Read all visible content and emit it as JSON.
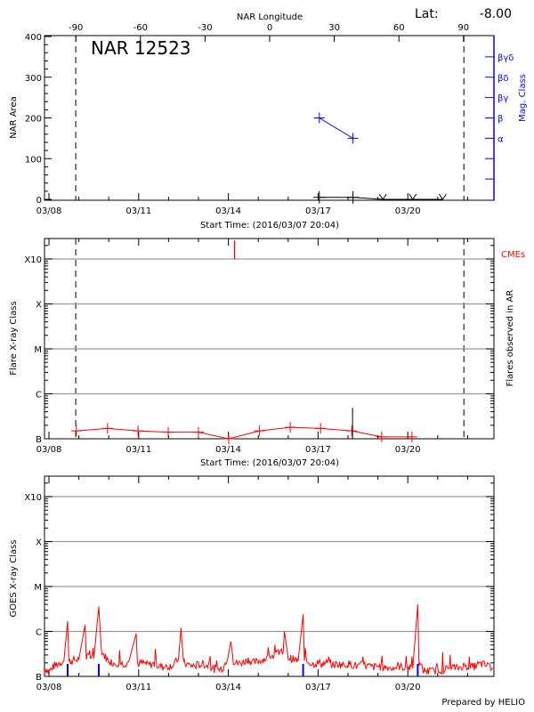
{
  "header": {
    "lat_label": "Lat:",
    "lat_value": "-8.00",
    "footer": "Prepared by HELIO"
  },
  "colors": {
    "flare": "#ff0000",
    "mag": "#0000ff",
    "grid": "#999999",
    "goes_event": "#0000ff"
  },
  "time_axis": {
    "range": [
      "03/07 20:04",
      "03/22 20:04"
    ],
    "tick_labels": [
      "03/08",
      "03/11",
      "03/14",
      "03/17",
      "03/20"
    ],
    "xlabel": "Start Time: (2016/03/07 20:04)"
  },
  "chart_data": [
    {
      "type": "line",
      "title": "NAR 12523",
      "ylabel": "NAR Area",
      "ylim": [
        0,
        400
      ],
      "yticks": [
        "0",
        "100",
        "200",
        "300",
        "400"
      ],
      "top_axis": {
        "label": "NAR Longitude",
        "ticks": [
          "-90",
          "-60",
          "-30",
          "0",
          "30",
          "60",
          "90"
        ]
      },
      "limb_lines": [
        "03/08 21:30",
        "03/21 21:00"
      ],
      "area_series": [
        {
          "t": "03/17 01:00",
          "v": 5
        },
        {
          "t": "03/18 04:00",
          "v": 5
        },
        {
          "t": "03/19 04:00",
          "v": 0
        },
        {
          "t": "03/20 04:00",
          "v": 0
        },
        {
          "t": "03/21 04:00",
          "v": 0
        }
      ],
      "right_axis": {
        "label": "Mag. Class",
        "classes": [
          "α",
          "β",
          "βγ",
          "βδ",
          "βγδ"
        ]
      },
      "mag_series": [
        {
          "t": "03/17 01:00",
          "class": "β"
        },
        {
          "t": "03/18 04:00",
          "class": "α"
        }
      ]
    },
    {
      "type": "line",
      "ylabel": "Flare X-ray Class",
      "right_label": "Flares observed in AR",
      "cme_label": "CMEs",
      "yticks": [
        "B",
        "C",
        "M",
        "X",
        "X10"
      ],
      "scale": "log",
      "grid": true,
      "limb_lines": [
        "03/08 21:30",
        "03/21 21:00"
      ],
      "flare_series": [
        {
          "t": "03/08 22:00",
          "v": 1.5e-07
        },
        {
          "t": "03/09 23:00",
          "v": 1.7e-07
        },
        {
          "t": "03/10 23:30",
          "v": 1.5e-07
        },
        {
          "t": "03/11 23:45",
          "v": 1.4e-07
        },
        {
          "t": "03/13 00:00",
          "v": 1.4e-07
        },
        {
          "t": "03/14 00:15",
          "v": 1e-07
        },
        {
          "t": "03/15 01:00",
          "v": 1.5e-07
        },
        {
          "t": "03/16 01:40",
          "v": 1.8e-07
        },
        {
          "t": "03/17 02:00",
          "v": 1.7e-07
        },
        {
          "t": "03/18 03:00",
          "v": 1.5e-07
        },
        {
          "t": "03/19 03:00",
          "v": 1.1e-07
        },
        {
          "t": "03/20 03:20",
          "v": 1.1e-07
        }
      ],
      "observed_flares": [
        {
          "t": "03/18 03:40",
          "v": 4.9e-07
        }
      ],
      "cmes": [
        {
          "t": "03/14 05:00"
        }
      ]
    },
    {
      "type": "line",
      "ylabel": "GOES X-ray Class",
      "yticks": [
        "B",
        "C",
        "M",
        "X",
        "X10"
      ],
      "scale": "log",
      "grid": true,
      "flux": [
        [
          "03/07 20:00",
          1.5e-07
        ],
        [
          "03/08 00:00",
          1.3e-07
        ],
        [
          "03/08 04:00",
          1.7e-07
        ],
        [
          "03/08 08:00",
          2e-07
        ],
        [
          "03/08 12:00",
          2.2e-07
        ],
        [
          "03/08 15:00",
          1.7e-06
        ],
        [
          "03/08 16:00",
          2.1e-07
        ],
        [
          "03/08 20:00",
          2.3e-07
        ],
        [
          "03/09 00:00",
          2.4e-07
        ],
        [
          "03/09 05:00",
          1.4e-06
        ],
        [
          "03/09 06:00",
          2.6e-07
        ],
        [
          "03/09 08:00",
          2.8e-07
        ],
        [
          "03/09 12:00",
          2.5e-07
        ],
        [
          "03/09 16:00",
          3.6e-06
        ],
        [
          "03/09 18:00",
          4e-07
        ],
        [
          "03/09 20:00",
          3e-07
        ],
        [
          "03/10 00:00",
          2.2e-07
        ],
        [
          "03/10 04:00",
          2e-07
        ],
        [
          "03/10 08:00",
          2e-07
        ],
        [
          "03/10 12:00",
          1.9e-07
        ],
        [
          "03/10 16:00",
          2.1e-07
        ],
        [
          "03/10 22:00",
          9e-07
        ],
        [
          "03/10 23:00",
          2e-07
        ],
        [
          "03/11 00:00",
          1.9e-07
        ],
        [
          "03/11 04:00",
          2e-07
        ],
        [
          "03/11 08:00",
          1.8e-07
        ],
        [
          "03/11 12:00",
          1.9e-07
        ],
        [
          "03/11 16:00",
          1.7e-07
        ],
        [
          "03/11 20:00",
          1.6e-07
        ],
        [
          "03/12 00:00",
          1.7e-07
        ],
        [
          "03/12 04:00",
          1.8e-07
        ],
        [
          "03/12 08:00",
          2.5e-07
        ],
        [
          "03/12 10:00",
          1.2e-06
        ],
        [
          "03/12 12:00",
          2e-07
        ],
        [
          "03/12 16:00",
          1.8e-07
        ],
        [
          "03/12 20:00",
          1.7e-07
        ],
        [
          "03/13 00:00",
          1.8e-07
        ],
        [
          "03/13 04:00",
          1.9e-07
        ],
        [
          "03/13 08:00",
          1.7e-07
        ],
        [
          "03/13 12:00",
          1.5e-07
        ],
        [
          "03/13 16:00",
          1.4e-07
        ],
        [
          "03/13 20:00",
          1.6e-07
        ],
        [
          "03/14 00:00",
          3e-07
        ],
        [
          "03/14 02:00",
          6e-07
        ],
        [
          "03/14 04:00",
          2.2e-07
        ],
        [
          "03/14 08:00",
          1.9e-07
        ],
        [
          "03/14 12:00",
          2.1e-07
        ],
        [
          "03/14 16:00",
          2.4e-07
        ],
        [
          "03/14 20:00",
          2e-07
        ],
        [
          "03/15 00:00",
          2.2e-07
        ],
        [
          "03/15 04:00",
          2.4e-07
        ],
        [
          "03/15 08:00",
          2.6e-07
        ],
        [
          "03/15 12:00",
          2.9e-07
        ],
        [
          "03/15 16:00",
          3.2e-07
        ],
        [
          "03/15 20:00",
          3.6e-07
        ],
        [
          "03/15 21:00",
          1e-06
        ],
        [
          "03/16 00:00",
          2.6e-07
        ],
        [
          "03/16 04:00",
          2.4e-07
        ],
        [
          "03/16 08:00",
          2.2e-07
        ],
        [
          "03/16 12:00",
          2.4e-06
        ],
        [
          "03/16 13:00",
          2e-07
        ],
        [
          "03/16 16:00",
          2.1e-07
        ],
        [
          "03/16 20:00",
          1.9e-07
        ],
        [
          "03/17 00:00",
          2e-07
        ],
        [
          "03/17 04:00",
          1.9e-07
        ],
        [
          "03/17 08:00",
          2.1e-07
        ],
        [
          "03/17 12:00",
          1.8e-07
        ],
        [
          "03/17 16:00",
          1.9e-07
        ],
        [
          "03/17 20:00",
          1.8e-07
        ],
        [
          "03/18 00:00",
          1.9e-07
        ],
        [
          "03/18 04:00",
          1.8e-07
        ],
        [
          "03/18 08:00",
          1.7e-07
        ],
        [
          "03/18 12:00",
          1.8e-07
        ],
        [
          "03/18 16:00",
          1.7e-07
        ],
        [
          "03/18 20:00",
          1.6e-07
        ],
        [
          "03/19 00:00",
          1.7e-07
        ],
        [
          "03/19 04:00",
          1.6e-07
        ],
        [
          "03/19 08:00",
          1.6e-07
        ],
        [
          "03/19 12:00",
          1.5e-07
        ],
        [
          "03/19 16:00",
          1.7e-07
        ],
        [
          "03/19 20:00",
          1.6e-07
        ],
        [
          "03/20 00:00",
          1.6e-07
        ],
        [
          "03/20 04:00",
          1.5e-07
        ],
        [
          "03/20 08:00",
          4e-06
        ],
        [
          "03/20 09:00",
          2e-07
        ],
        [
          "03/20 12:00",
          1.4e-07
        ],
        [
          "03/20 16:00",
          1.3e-07
        ],
        [
          "03/20 20:00",
          1.3e-07
        ],
        [
          "03/21 00:00",
          1.4e-07
        ],
        [
          "03/21 04:00",
          1.4e-07
        ],
        [
          "03/21 08:00",
          1.5e-07
        ],
        [
          "03/21 12:00",
          1.6e-07
        ],
        [
          "03/21 16:00",
          1.5e-07
        ],
        [
          "03/21 20:00",
          1.7e-07
        ],
        [
          "03/22 00:00",
          1.7e-07
        ],
        [
          "03/22 04:00",
          1.6e-07
        ],
        [
          "03/22 08:00",
          1.8e-07
        ],
        [
          "03/22 12:00",
          1.9e-07
        ],
        [
          "03/22 16:00",
          1.7e-07
        ],
        [
          "03/22 20:00",
          1.6e-07
        ]
      ],
      "events": [
        {
          "t": "03/08 15:00"
        },
        {
          "t": "03/09 16:00"
        },
        {
          "t": "03/16 12:00"
        },
        {
          "t": "03/20 08:00"
        }
      ]
    }
  ]
}
